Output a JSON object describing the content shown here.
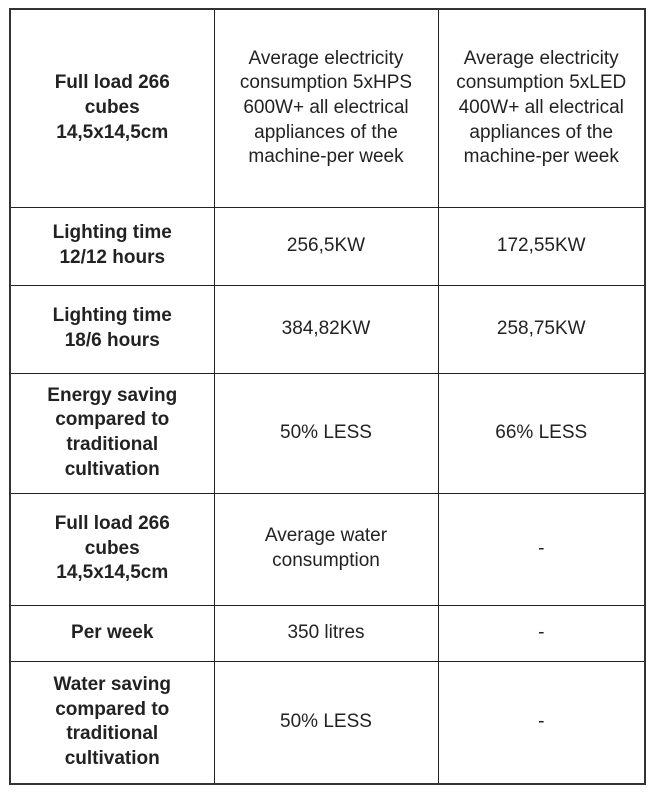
{
  "rows": [
    {
      "label": "Full load 266 cubes 14,5x14,5cm",
      "c1": "Average electricity consumption 5xHPS 600W+ all electrical appliances of the machine-per week",
      "c2": "Average electricity consumption 5xLED 400W+ all electrical appliances of the machine-per week"
    },
    {
      "label": "Lighting time 12/12 hours",
      "c1": "256,5KW",
      "c2": "172,55KW"
    },
    {
      "label": "Lighting time 18/6 hours",
      "c1": "384,82KW",
      "c2": "258,75KW"
    },
    {
      "label": "Energy saving compared to traditional cultivation",
      "c1": "50% LESS",
      "c2": "66% LESS"
    },
    {
      "label": "Full load 266 cubes 14,5x14,5cm",
      "c1": "Average water consumption",
      "c2": "-"
    },
    {
      "label": "Per week",
      "c1": "350 litres",
      "c2": "-"
    },
    {
      "label": "Water saving compared to traditional cultivation",
      "c1": "50% LESS",
      "c2": "-"
    }
  ]
}
